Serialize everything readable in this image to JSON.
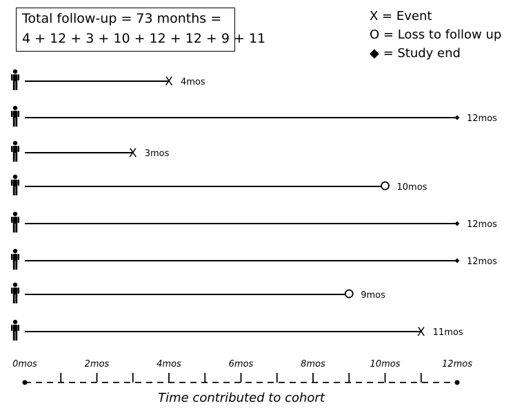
{
  "summary": {
    "line1": "Total follow-up = 73 months =",
    "line2": "4 + 12 + 3 + 10 + 12 + 12 + 9 + 11"
  },
  "legend": {
    "event": "X = Event",
    "loss": "O = Loss to follow up",
    "end": "◆ = Study end"
  },
  "chart_data": {
    "type": "timeline",
    "x": {
      "min": 0,
      "max": 12,
      "unit": "months",
      "tick_values": [
        0,
        2,
        4,
        6,
        8,
        10,
        12
      ],
      "tick_labels": [
        "0mos",
        "2mos",
        "4mos",
        "6mos",
        "8mos",
        "10mos",
        "12mos"
      ],
      "title": "Time contributed to cohort"
    },
    "participants": [
      {
        "months": 4,
        "outcome": "event",
        "label": "4mos"
      },
      {
        "months": 12,
        "outcome": "study_end",
        "label": "12mos"
      },
      {
        "months": 3,
        "outcome": "event",
        "label": "3mos"
      },
      {
        "months": 10,
        "outcome": "loss",
        "label": "10mos"
      },
      {
        "months": 12,
        "outcome": "study_end",
        "label": "12mos"
      },
      {
        "months": 12,
        "outcome": "study_end",
        "label": "12mos"
      },
      {
        "months": 9,
        "outcome": "loss",
        "label": "9mos"
      },
      {
        "months": 11,
        "outcome": "event",
        "label": "11mos"
      }
    ]
  }
}
